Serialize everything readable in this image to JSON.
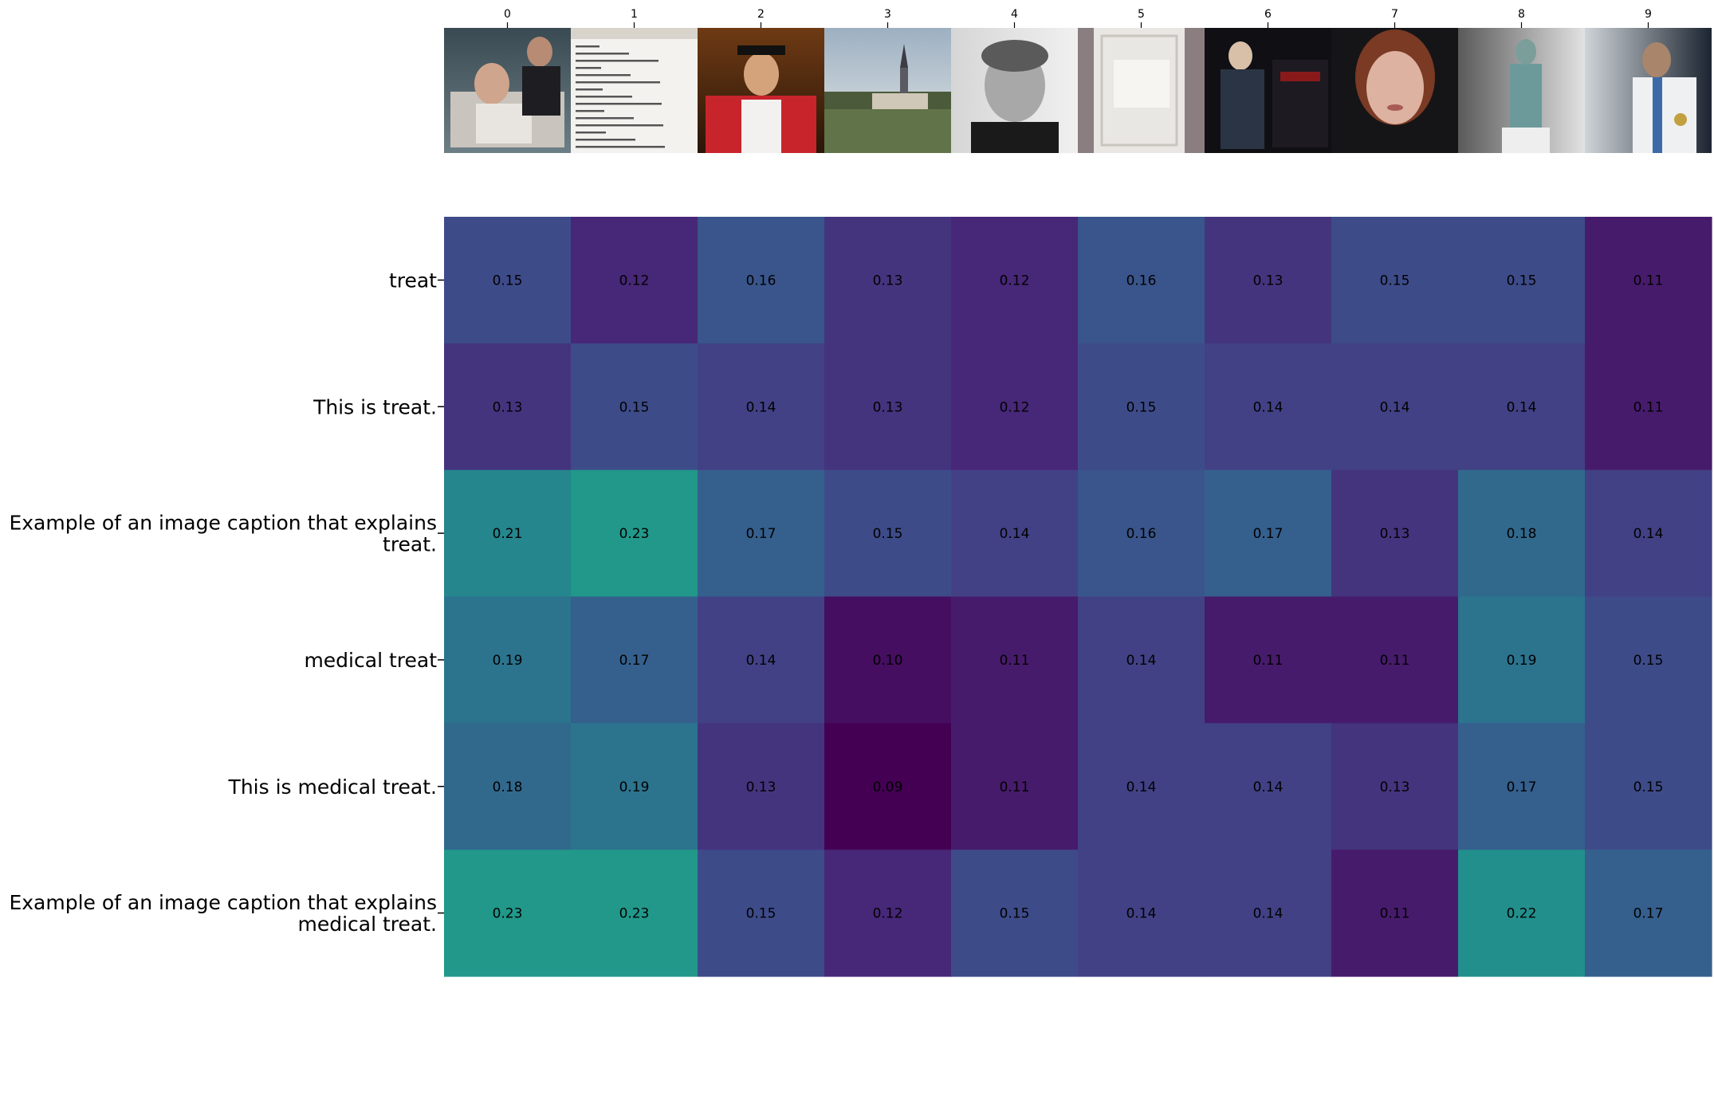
{
  "chart_data": {
    "type": "heatmap",
    "title": "",
    "xlabel": "",
    "ylabel": "",
    "x_tick_labels": [
      "0",
      "1",
      "2",
      "3",
      "4",
      "5",
      "6",
      "7",
      "8",
      "9"
    ],
    "y_tick_labels": [
      [
        "treat"
      ],
      [
        "This is treat."
      ],
      [
        "Example of an image caption that explains",
        "treat."
      ],
      [
        "medical treat"
      ],
      [
        "This is medical treat."
      ],
      [
        "Example of an image caption that explains",
        "medical treat."
      ]
    ],
    "images": [
      "hospital-bed-patient-image",
      "text-editor-screenshot-image",
      "graduation-gown-portrait-image",
      "village-church-landscape-image",
      "elderly-woman-bw-portrait-image",
      "white-lace-cloth-image",
      "man-with-machine-image",
      "woman-face-portrait-image",
      "surgeon-statue-image",
      "doctor-stethoscope-image"
    ],
    "values": [
      [
        0.15,
        0.12,
        0.16,
        0.13,
        0.12,
        0.16,
        0.13,
        0.15,
        0.15,
        0.11
      ],
      [
        0.13,
        0.15,
        0.14,
        0.13,
        0.12,
        0.15,
        0.14,
        0.14,
        0.14,
        0.11
      ],
      [
        0.21,
        0.23,
        0.17,
        0.15,
        0.14,
        0.16,
        0.17,
        0.13,
        0.18,
        0.14
      ],
      [
        0.19,
        0.17,
        0.14,
        0.1,
        0.11,
        0.14,
        0.11,
        0.11,
        0.19,
        0.15
      ],
      [
        0.18,
        0.19,
        0.13,
        0.09,
        0.11,
        0.14,
        0.14,
        0.13,
        0.17,
        0.15
      ],
      [
        0.23,
        0.23,
        0.15,
        0.12,
        0.15,
        0.14,
        0.14,
        0.11,
        0.22,
        0.17
      ]
    ],
    "colormap": "viridis",
    "value_range": [
      0.09,
      0.3
    ],
    "annotation_color": "#000000"
  }
}
